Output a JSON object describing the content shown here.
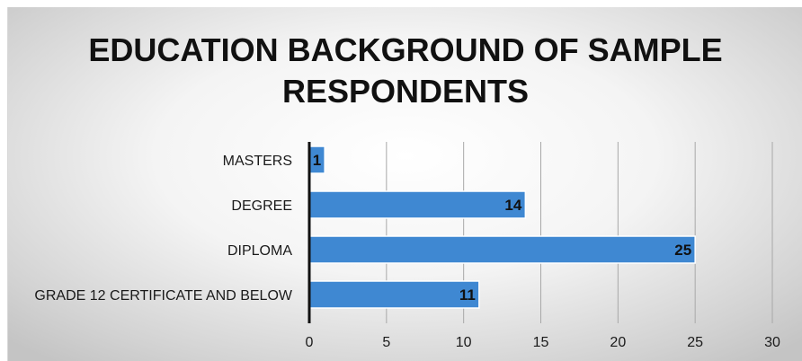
{
  "chart_data": {
    "type": "bar",
    "orientation": "horizontal",
    "title_lines": [
      "EDUCATION BACKGROUND OF SAMPLE",
      "RESPONDENTS"
    ],
    "categories": [
      "MASTERS",
      "DEGREE",
      "DIPLOMA",
      "GRADE 12 CERTIFICATE AND BELOW"
    ],
    "values": [
      1,
      14,
      25,
      11
    ],
    "xlim": [
      0,
      30
    ],
    "xticks": [
      0,
      5,
      10,
      15,
      20,
      25,
      30
    ],
    "grid": "vertical",
    "legend": "none",
    "bar_color": "#3f88d2",
    "data_labels": true
  }
}
